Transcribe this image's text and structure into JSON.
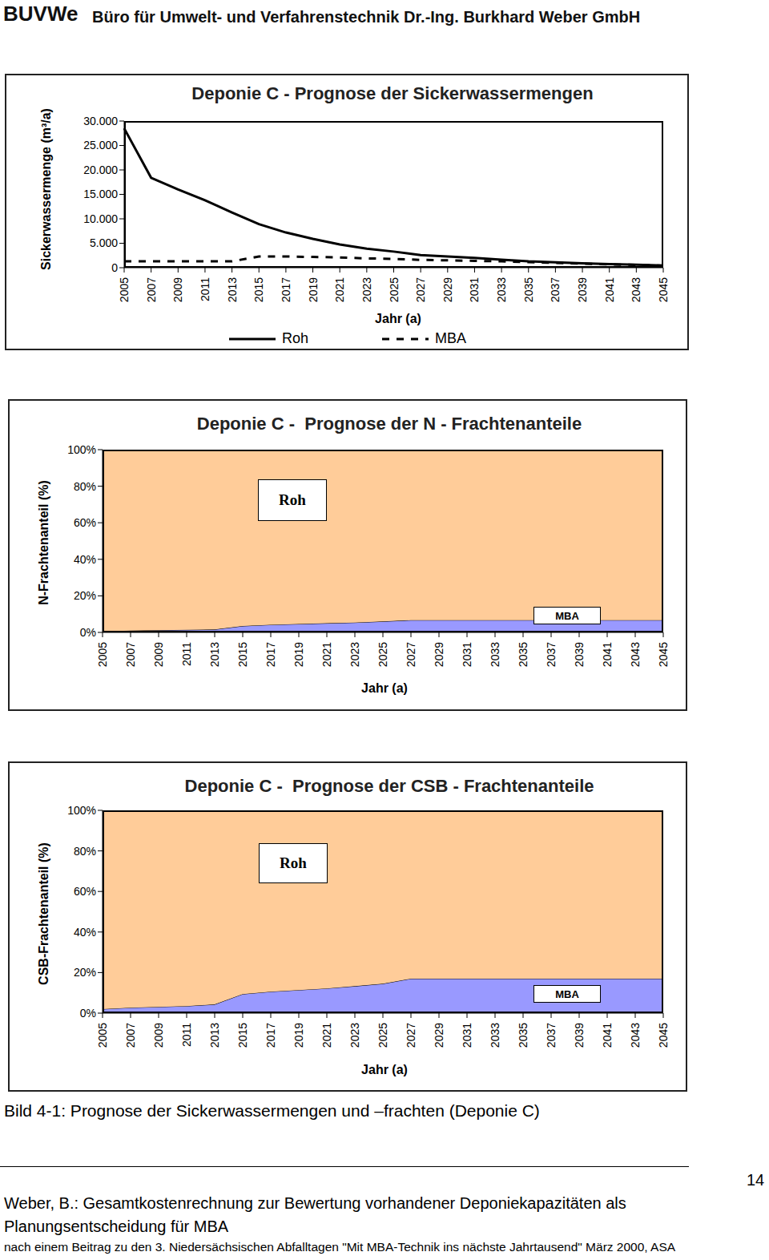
{
  "header": {
    "logo": "BUVWe",
    "company": "Büro für Umwelt- und Verfahrenstechnik Dr.-Ing. Burkhard Weber GmbH"
  },
  "chart_data": [
    {
      "type": "line",
      "title": "Deponie C - Prognose der Sickerwassermengen",
      "x_label": "Jahr (a)",
      "y_label": "Sickerwassermenge (m³/a)",
      "categories": [
        "2005",
        "2007",
        "2009",
        "2011",
        "2013",
        "2015",
        "2017",
        "2019",
        "2021",
        "2023",
        "2025",
        "2027",
        "2029",
        "2031",
        "2033",
        "2035",
        "2037",
        "2039",
        "2041",
        "2043",
        "2045"
      ],
      "series": [
        {
          "name": "Roh",
          "color": "#000000",
          "line_style": "solid",
          "values": [
            28500,
            18400,
            16000,
            13800,
            11300,
            8900,
            7200,
            5900,
            4750,
            3900,
            3300,
            2600,
            2300,
            2000,
            1650,
            1300,
            1100,
            900,
            750,
            600,
            450
          ]
        },
        {
          "name": "MBA",
          "color": "#000000",
          "line_style": "dashed",
          "values": [
            1300,
            1300,
            1300,
            1300,
            1300,
            2300,
            2300,
            2200,
            2100,
            1900,
            1800,
            1600,
            1500,
            1400,
            1300,
            1150,
            1000,
            850,
            700,
            550,
            400
          ]
        }
      ],
      "ylim": [
        0,
        30000
      ],
      "yticks": [
        0,
        {
          "value": 5000,
          "label": "5.000"
        },
        {
          "value": 10000,
          "label": "10.000"
        },
        {
          "value": 15000,
          "label": "15.000"
        },
        {
          "value": 20000,
          "label": "20.000"
        },
        {
          "value": 25000,
          "label": "25.000"
        },
        {
          "value": 30000,
          "label": "30.000"
        }
      ],
      "legend": "bottom"
    },
    {
      "type": "area",
      "stacked": true,
      "title": "Deponie C -  Prognose der N - Frachtenanteile",
      "x_label": "Jahr (a)",
      "y_label": "N-Frachtenanteil (%)",
      "categories": [
        "2005",
        "2007",
        "2009",
        "2011",
        "2013",
        "2015",
        "2017",
        "2019",
        "2021",
        "2023",
        "2025",
        "2027",
        "2029",
        "2031",
        "2033",
        "2035",
        "2037",
        "2039",
        "2041",
        "2043",
        "2045"
      ],
      "series": [
        {
          "name": "Roh",
          "color": "#FFCC99",
          "values": [
            99.5,
            99,
            98.8,
            98.6,
            98.4,
            96.5,
            95.8,
            95.4,
            95,
            94.6,
            94,
            93.3,
            93.3,
            93.3,
            93.3,
            93.3,
            93.3,
            93.3,
            93.3,
            93.3,
            93.3
          ]
        },
        {
          "name": "MBA",
          "color": "#9999FF",
          "values": [
            0.5,
            1,
            1.2,
            1.4,
            1.6,
            3.5,
            4.2,
            4.6,
            5,
            5.4,
            6,
            6.7,
            6.7,
            6.7,
            6.7,
            6.7,
            6.7,
            6.7,
            6.7,
            6.7,
            6.7
          ]
        }
      ],
      "ylim": [
        0,
        100
      ],
      "yticks": [
        {
          "value": 0,
          "label": "0%"
        },
        {
          "value": 20,
          "label": "20%"
        },
        {
          "value": 40,
          "label": "40%"
        },
        {
          "value": 60,
          "label": "60%"
        },
        {
          "value": 80,
          "label": "80%"
        },
        {
          "value": 100,
          "label": "100%"
        }
      ]
    },
    {
      "type": "area",
      "stacked": true,
      "title": "Deponie C -  Prognose der CSB - Frachtenanteile",
      "x_label": "Jahr (a)",
      "y_label": "CSB-Frachtenanteil (%)",
      "categories": [
        "2005",
        "2007",
        "2009",
        "2011",
        "2013",
        "2015",
        "2017",
        "2019",
        "2021",
        "2023",
        "2025",
        "2027",
        "2029",
        "2031",
        "2033",
        "2035",
        "2037",
        "2039",
        "2041",
        "2043",
        "2045"
      ],
      "series": [
        {
          "name": "Roh",
          "color": "#FFCC99",
          "values": [
            98,
            97.3,
            96.9,
            96.5,
            95.7,
            90.6,
            89.4,
            88.6,
            87.8,
            86.7,
            85.5,
            83,
            83,
            83,
            83,
            83,
            83,
            83,
            83,
            83,
            83
          ]
        },
        {
          "name": "MBA",
          "color": "#9999FF",
          "values": [
            2,
            2.7,
            3.1,
            3.5,
            4.3,
            9.4,
            10.6,
            11.4,
            12.2,
            13.3,
            14.5,
            17,
            17,
            17,
            17,
            17,
            17,
            17,
            17,
            17,
            17
          ]
        }
      ],
      "ylim": [
        0,
        100
      ],
      "yticks": [
        {
          "value": 0,
          "label": "0%"
        },
        {
          "value": 20,
          "label": "20%"
        },
        {
          "value": 40,
          "label": "40%"
        },
        {
          "value": 60,
          "label": "60%"
        },
        {
          "value": 80,
          "label": "80%"
        },
        {
          "value": 100,
          "label": "100%"
        }
      ]
    }
  ],
  "caption": "Bild 4-1: Prognose der Sickerwassermengen und –frachten (Deponie C)",
  "footer": {
    "page": "14",
    "lines": [
      "Weber, B.: Gesamtkostenrechnung zur Bewertung vorhandener Deponiekapazitäten als",
      "Planungsentscheidung für MBA"
    ],
    "note": "nach einem Beitrag zu den 3. Niedersächsischen Abfalltagen \"Mit MBA-Technik ins nächste Jahrtausend\" März 2000, ASA"
  }
}
